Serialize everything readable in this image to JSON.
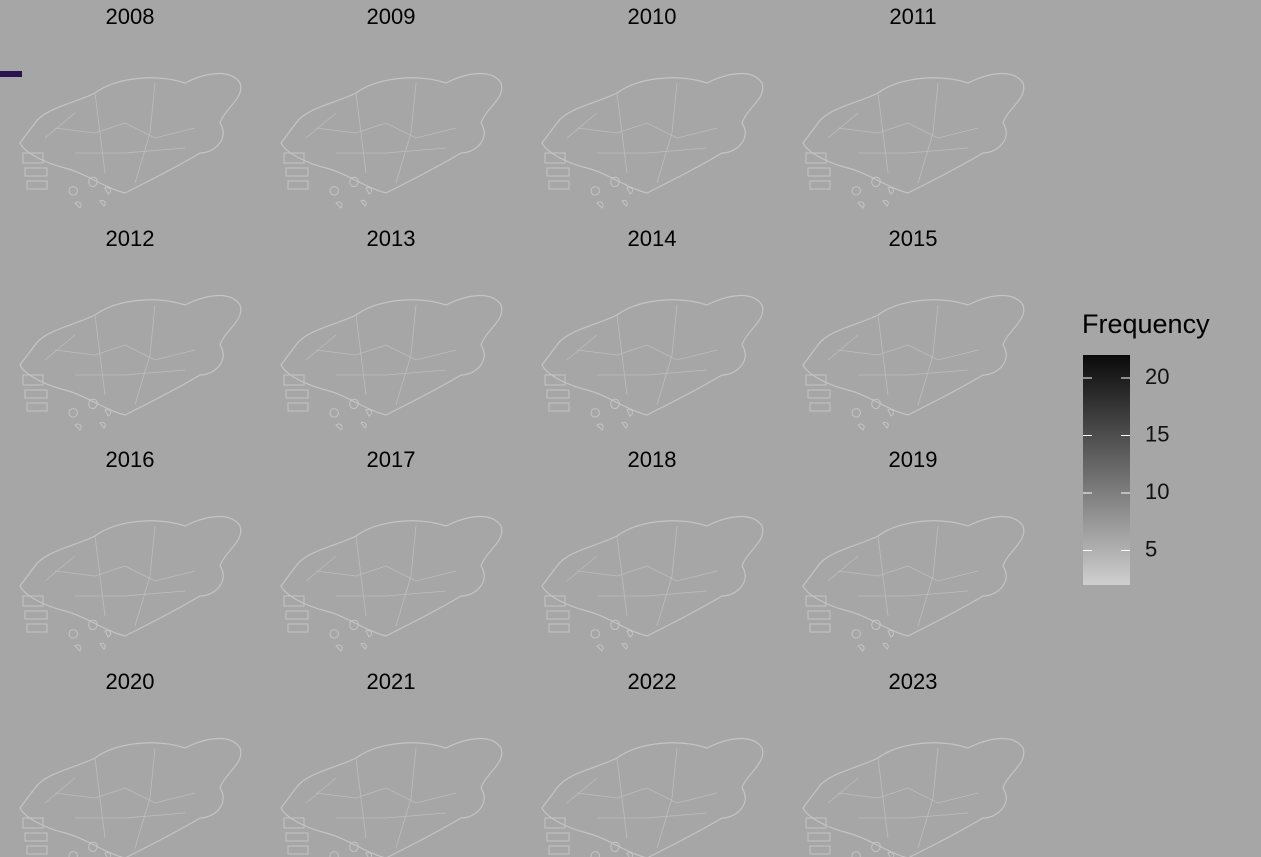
{
  "panels": [
    {
      "title": "2008"
    },
    {
      "title": "2009"
    },
    {
      "title": "2010"
    },
    {
      "title": "2011"
    },
    {
      "title": "2012"
    },
    {
      "title": "2013"
    },
    {
      "title": "2014"
    },
    {
      "title": "2015"
    },
    {
      "title": "2016"
    },
    {
      "title": "2017"
    },
    {
      "title": "2018"
    },
    {
      "title": "2019"
    },
    {
      "title": "2020"
    },
    {
      "title": "2021"
    },
    {
      "title": "2022"
    },
    {
      "title": "2023"
    }
  ],
  "legend": {
    "title": "Frequency",
    "lim": [
      2,
      22
    ],
    "ticks": [
      5,
      10,
      15,
      20
    ]
  }
}
